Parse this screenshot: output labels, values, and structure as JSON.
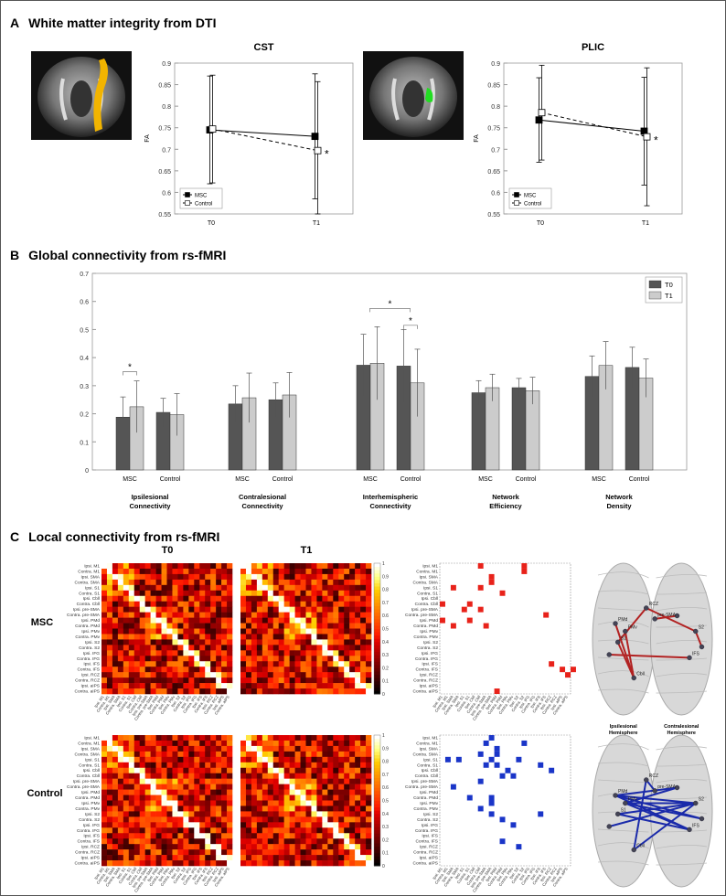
{
  "panel_a": {
    "letter": "A",
    "title": "White matter integrity from DTI",
    "charts": [
      {
        "title": "CST",
        "ylabel": "FA",
        "ylim": [
          0.55,
          0.9
        ],
        "yticks": [
          "0.55",
          "0.6",
          "0.65",
          "0.7",
          "0.75",
          "0.8",
          "0.85",
          "0.9"
        ],
        "categories": [
          "T0",
          "T1"
        ],
        "series": [
          {
            "name": "MSC",
            "values": [
              0.745,
              0.73
            ],
            "err": [
              0.125,
              0.145
            ]
          },
          {
            "name": "Control",
            "values": [
              0.747,
              0.697
            ],
            "err": [
              0.125,
              0.16
            ]
          }
        ],
        "legend": [
          "MSC",
          "Control"
        ],
        "star": "*"
      },
      {
        "title": "PLIC",
        "ylabel": "FA",
        "ylim": [
          0.55,
          0.9
        ],
        "yticks": [
          "0.55",
          "0.6",
          "0.65",
          "0.7",
          "0.75",
          "0.8",
          "0.85",
          "0.9"
        ],
        "categories": [
          "T0",
          "T1"
        ],
        "series": [
          {
            "name": "MSC",
            "values": [
              0.768,
              0.742
            ],
            "err": [
              0.098,
              0.125
            ]
          },
          {
            "name": "Control",
            "values": [
              0.785,
              0.729
            ],
            "err": [
              0.11,
              0.16
            ]
          }
        ],
        "legend": [
          "MSC",
          "Control"
        ],
        "star": "*"
      }
    ]
  },
  "panel_b": {
    "letter": "B",
    "title": "Global connectivity from rs-fMRI",
    "chart_data": {
      "type": "bar",
      "ylim": [
        0,
        0.7
      ],
      "yticks": [
        "0",
        "0.1",
        "0.2",
        "0.3",
        "0.4",
        "0.5",
        "0.6",
        "0.7"
      ],
      "legend": [
        "T0",
        "T1"
      ],
      "groups": [
        {
          "name": "Ipsilesional Connectivity",
          "line1": "Ipsilesional",
          "line2": "Connectivity",
          "bars": [
            {
              "label": "MSC",
              "t0": 0.188,
              "t1": 0.225,
              "e0": 0.072,
              "e1": 0.092
            },
            {
              "label": "Control",
              "t0": 0.205,
              "t1": 0.197,
              "e0": 0.05,
              "e1": 0.075
            }
          ]
        },
        {
          "name": "Contralesional Connectivity",
          "line1": "Contralesional",
          "line2": "Connectivity",
          "bars": [
            {
              "label": "MSC",
              "t0": 0.235,
              "t1": 0.257,
              "e0": 0.065,
              "e1": 0.088
            },
            {
              "label": "Control",
              "t0": 0.25,
              "t1": 0.267,
              "e0": 0.06,
              "e1": 0.08
            }
          ]
        },
        {
          "name": "Interhemispheric Connectivity",
          "line1": "Interhemispheric",
          "line2": "Connectivity",
          "bars": [
            {
              "label": "MSC",
              "t0": 0.373,
              "t1": 0.38,
              "e0": 0.11,
              "e1": 0.13
            },
            {
              "label": "Control",
              "t0": 0.37,
              "t1": 0.31,
              "e0": 0.13,
              "e1": 0.12
            }
          ]
        },
        {
          "name": "Network Efficiency",
          "line1": "Network",
          "line2": "Efficiency",
          "bars": [
            {
              "label": "MSC",
              "t0": 0.275,
              "t1": 0.293,
              "e0": 0.043,
              "e1": 0.048
            },
            {
              "label": "Control",
              "t0": 0.293,
              "t1": 0.282,
              "e0": 0.033,
              "e1": 0.048
            }
          ]
        },
        {
          "name": "Network Density",
          "line1": "Network",
          "line2": "Density",
          "bars": [
            {
              "label": "MSC",
              "t0": 0.333,
              "t1": 0.372,
              "e0": 0.073,
              "e1": 0.085
            },
            {
              "label": "Control",
              "t0": 0.365,
              "t1": 0.327,
              "e0": 0.072,
              "e1": 0.068
            }
          ]
        }
      ],
      "annotations": [
        "*",
        "*",
        "*"
      ]
    }
  },
  "panel_c": {
    "letter": "C",
    "title": "Local connectivity from rs-fMRI",
    "col_t0": "T0",
    "col_t1": "T1",
    "row_msc": "MSC",
    "row_control": "Control",
    "regions": [
      "Ipsi. M1",
      "Contra. M1",
      "Ipsi. SMA",
      "Contra. SMA",
      "Ipsi. S1",
      "Contra. S1",
      "Ipsi. Cbll",
      "Contra. Cbll",
      "Ipsi. pre-SMA",
      "Contra. pre-SMA",
      "Ipsi. PMd",
      "Contra. PMd",
      "Ipsi. PMv",
      "Contra. PMv",
      "Ipsi. S2",
      "Contra. S2",
      "Ipsi. IFG",
      "Contra. IFG",
      "Ipsi. IFS",
      "Contra. IFS",
      "Ipsi. RCZ",
      "Contra. RCZ",
      "Ipsi. aIPS",
      "Contra. aIPS"
    ],
    "colorbar_ticks": [
      "0",
      "0.1",
      "0.2",
      "0.3",
      "0.4",
      "0.5",
      "0.6",
      "0.7",
      "0.8",
      "0.9",
      "1"
    ],
    "brain_left_label": [
      "Ipsilesional",
      "Hemisphere"
    ],
    "brain_right_label": [
      "Contralesional",
      "Hemisphere"
    ],
    "colors": {
      "msc_sig": "#e8221a",
      "control_sig": "#1a35c8",
      "brain_msc_line": "#b22222",
      "brain_control_line": "#1a2aaa"
    },
    "msc_sig_cells": [
      [
        0,
        7
      ],
      [
        0,
        15
      ],
      [
        1,
        15
      ],
      [
        2,
        9
      ],
      [
        3,
        9
      ],
      [
        4,
        2
      ],
      [
        4,
        7
      ],
      [
        5,
        11
      ],
      [
        7,
        0
      ],
      [
        7,
        5
      ],
      [
        8,
        7
      ],
      [
        8,
        4
      ],
      [
        9,
        19
      ],
      [
        10,
        0
      ],
      [
        10,
        5
      ],
      [
        11,
        8
      ],
      [
        11,
        2
      ],
      [
        18,
        20
      ],
      [
        19,
        22
      ],
      [
        19,
        24
      ],
      [
        20,
        23
      ],
      [
        23,
        10
      ]
    ],
    "control_sig_cells": [
      [
        0,
        9
      ],
      [
        1,
        8
      ],
      [
        1,
        15
      ],
      [
        2,
        10
      ],
      [
        3,
        7
      ],
      [
        3,
        10
      ],
      [
        4,
        9
      ],
      [
        4,
        14
      ],
      [
        4,
        1
      ],
      [
        4,
        3
      ],
      [
        5,
        8
      ],
      [
        5,
        10
      ],
      [
        5,
        18
      ],
      [
        6,
        12
      ],
      [
        6,
        20
      ],
      [
        7,
        11
      ],
      [
        7,
        13
      ],
      [
        8,
        7
      ],
      [
        9,
        2
      ],
      [
        11,
        9
      ],
      [
        11,
        5
      ],
      [
        12,
        9
      ],
      [
        13,
        7
      ],
      [
        14,
        9
      ],
      [
        14,
        18
      ],
      [
        15,
        11
      ],
      [
        16,
        13
      ],
      [
        19,
        11
      ],
      [
        20,
        14
      ]
    ],
    "brain_msc_nodes": [
      "RCZ",
      "pre-SMA",
      "PMd",
      "PMv",
      "S1",
      "S2",
      "IFS",
      "Cbll"
    ],
    "brain_control_nodes": [
      "RCZ",
      "pre-SMA",
      "PMd",
      "PMv",
      "S1",
      "S2",
      "IFS",
      "Cbll"
    ]
  }
}
